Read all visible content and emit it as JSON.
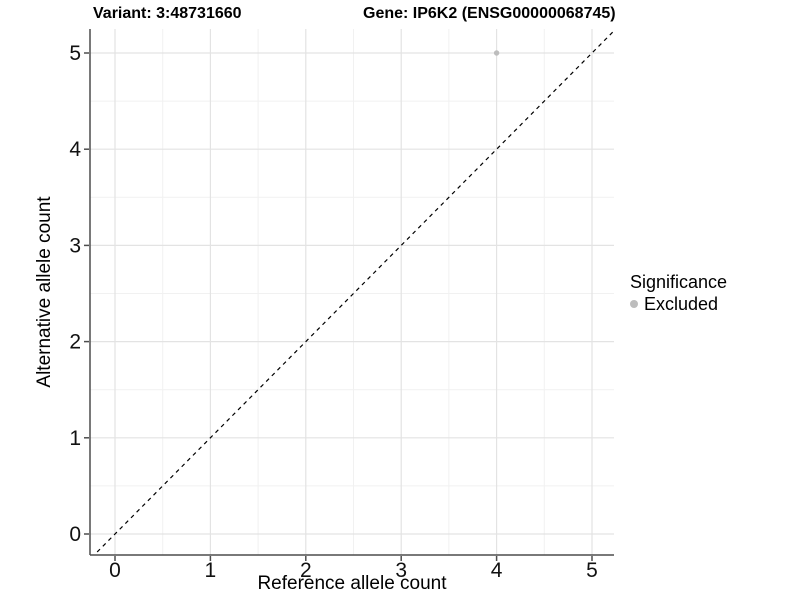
{
  "header": {
    "variant_title": "Variant: 3:48731660",
    "gene_title": "Gene: IP6K2 (ENSG00000068745)"
  },
  "chart_data": {
    "type": "scatter",
    "xlabel": "Reference allele count",
    "ylabel": "Alternative allele count",
    "xlim": [
      -0.26,
      5.24
    ],
    "ylim": [
      -0.22,
      5.25
    ],
    "x_ticks": [
      0,
      1,
      2,
      3,
      4,
      5
    ],
    "y_ticks": [
      0,
      1,
      2,
      3,
      4,
      5
    ],
    "x_minor": [
      0.5,
      1.5,
      2.5,
      3.5,
      4.5
    ],
    "y_minor": [
      0.5,
      1.5,
      2.5,
      3.5,
      4.5
    ],
    "grid": "major+minor",
    "reference_line": {
      "equation": "y = x",
      "style": "dashed",
      "color": "#000000"
    },
    "series": [
      {
        "name": "Excluded",
        "color": "#bdbdbd",
        "points": [
          {
            "x": 4,
            "y": 5
          }
        ]
      }
    ],
    "legend": {
      "position": "right",
      "title": "Significance",
      "items": [
        {
          "label": "Excluded",
          "color": "#bdbdbd"
        }
      ]
    }
  },
  "colors": {
    "background": "#ffffff",
    "grid_major": "#e3e3e3",
    "grid_minor": "#f1f1f1",
    "axis_line": "#4d4d4d",
    "tick_label": "#111111",
    "point": "#bdbdbd",
    "reference_line": "#000000"
  }
}
